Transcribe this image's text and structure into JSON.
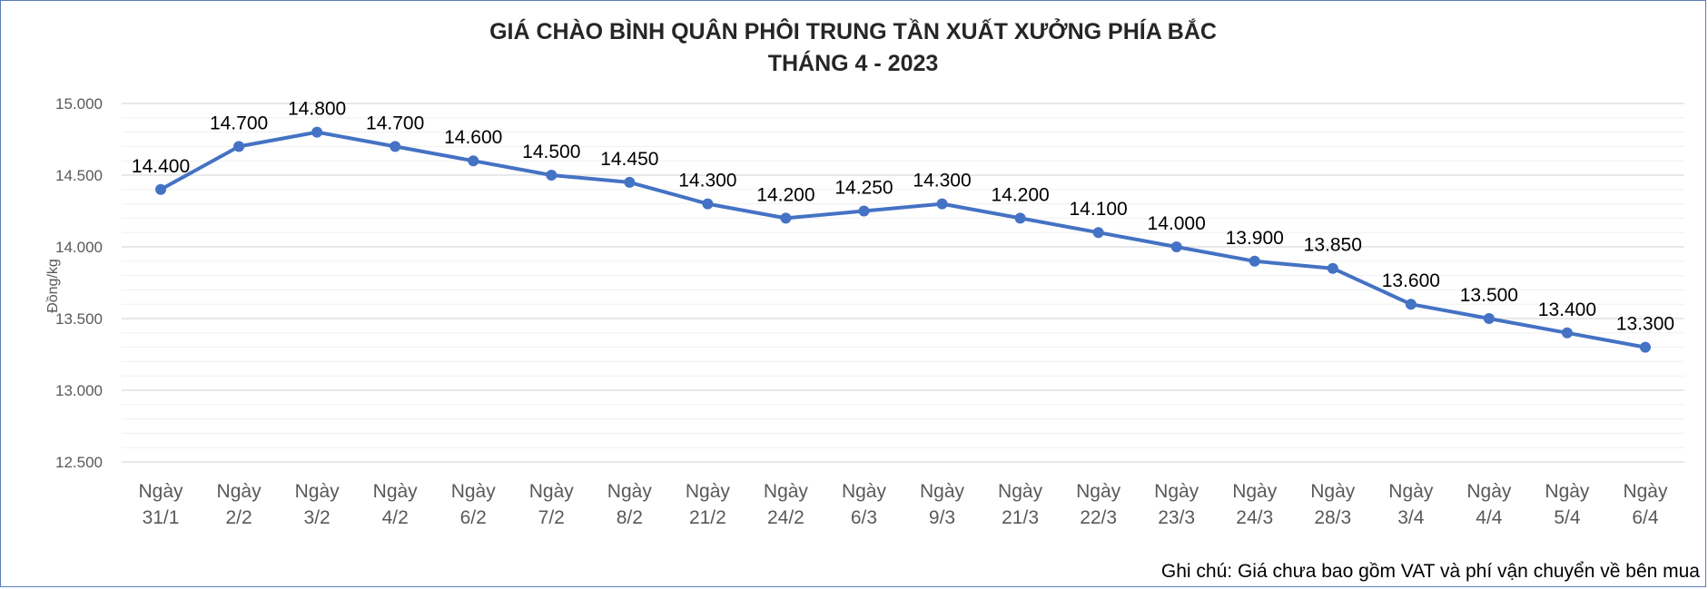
{
  "chart_data": {
    "type": "line",
    "title": "GIÁ CHÀO BÌNH QUÂN PHÔI TRUNG TẦN XUẤT XƯỞNG PHÍA BẮC",
    "subtitle": "THÁNG 4 - 2023",
    "xlabel": "",
    "ylabel": "Đồng/kg",
    "ylim": [
      12500,
      15000
    ],
    "yticks": [
      "12.500",
      "13.000",
      "13.500",
      "14.000",
      "14.500",
      "15.000"
    ],
    "categories": [
      [
        "Ngày",
        "31/1"
      ],
      [
        "Ngày",
        "2/2"
      ],
      [
        "Ngày",
        "3/2"
      ],
      [
        "Ngày",
        "4/2"
      ],
      [
        "Ngày",
        "6/2"
      ],
      [
        "Ngày",
        "7/2"
      ],
      [
        "Ngày",
        "8/2"
      ],
      [
        "Ngày",
        "21/2"
      ],
      [
        "Ngày",
        "24/2"
      ],
      [
        "Ngày",
        "6/3"
      ],
      [
        "Ngày",
        "9/3"
      ],
      [
        "Ngày",
        "21/3"
      ],
      [
        "Ngày",
        "22/3"
      ],
      [
        "Ngày",
        "23/3"
      ],
      [
        "Ngày",
        "24/3"
      ],
      [
        "Ngày",
        "28/3"
      ],
      [
        "Ngày",
        "3/4"
      ],
      [
        "Ngày",
        "4/4"
      ],
      [
        "Ngày",
        "5/4"
      ],
      [
        "Ngày",
        "6/4"
      ]
    ],
    "values": [
      14400,
      14700,
      14800,
      14700,
      14600,
      14500,
      14450,
      14300,
      14200,
      14250,
      14300,
      14200,
      14100,
      14000,
      13900,
      13850,
      13600,
      13500,
      13400,
      13300
    ],
    "data_labels": [
      "14.400",
      "14.700",
      "14.800",
      "14.700",
      "14.600",
      "14.500",
      "14.450",
      "14.300",
      "14.200",
      "14.250",
      "14.300",
      "14.200",
      "14.100",
      "14.000",
      "13.900",
      "13.850",
      "13.600",
      "13.500",
      "13.400",
      "13.300"
    ],
    "grid": true,
    "legend": "none",
    "line_color": "#4472c4",
    "gridline_color": "#d9d9d9",
    "minor_gridline_color": "#f0f0f0"
  },
  "footnote": "Ghi chú: Giá chưa bao gồm VAT và phí vận chuyển về bên mua"
}
